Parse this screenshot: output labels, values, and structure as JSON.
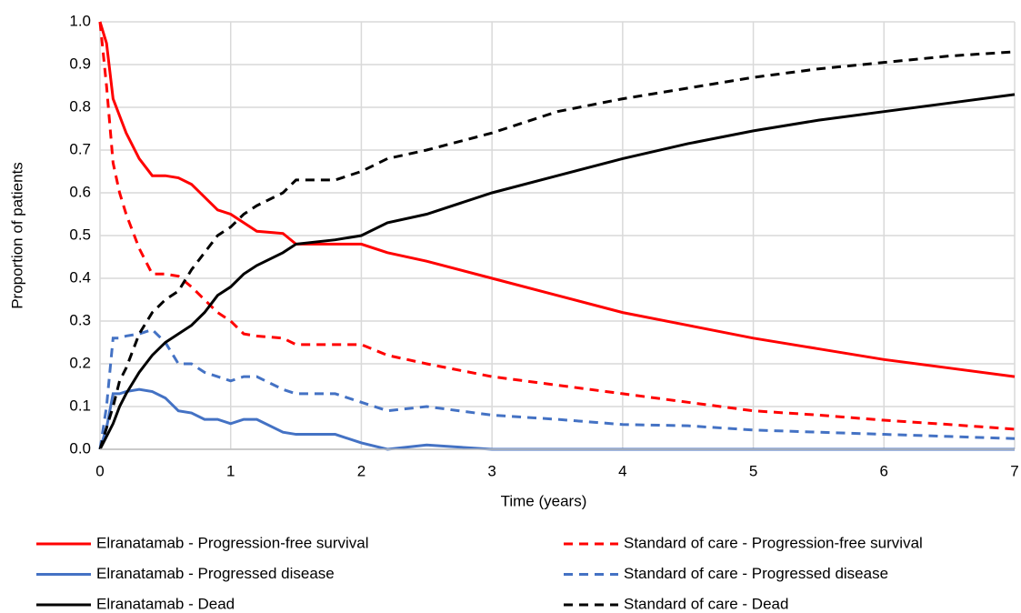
{
  "chart_data": {
    "type": "line",
    "xlabel": "Time (years)",
    "ylabel": "Proportion of patients",
    "x": [
      0,
      0.05,
      0.1,
      0.15,
      0.2,
      0.3,
      0.4,
      0.5,
      0.6,
      0.7,
      0.8,
      0.9,
      1.0,
      1.1,
      1.2,
      1.4,
      1.5,
      1.8,
      2.0,
      2.2,
      2.5,
      3,
      3.5,
      4,
      4.5,
      5,
      5.5,
      6,
      6.5,
      7
    ],
    "series": [
      {
        "name": "Elranatamab - Progression-free survival",
        "color": "#ff0000",
        "dash": false,
        "values": [
          1.0,
          0.95,
          0.82,
          0.78,
          0.74,
          0.68,
          0.64,
          0.64,
          0.635,
          0.62,
          0.59,
          0.56,
          0.55,
          0.53,
          0.51,
          0.505,
          0.48,
          0.48,
          0.48,
          0.46,
          0.44,
          0.4,
          0.36,
          0.32,
          0.29,
          0.26,
          0.235,
          0.21,
          0.19,
          0.17
        ]
      },
      {
        "name": "Standard of care - Progression-free survival",
        "color": "#ff0000",
        "dash": true,
        "values": [
          1.0,
          0.85,
          0.67,
          0.6,
          0.55,
          0.47,
          0.41,
          0.41,
          0.405,
          0.38,
          0.35,
          0.32,
          0.3,
          0.27,
          0.265,
          0.26,
          0.245,
          0.245,
          0.245,
          0.22,
          0.2,
          0.17,
          0.15,
          0.13,
          0.11,
          0.09,
          0.08,
          0.068,
          0.058,
          0.047
        ]
      },
      {
        "name": "Elranatamab - Progressed disease",
        "color": "#4472c4",
        "dash": false,
        "values": [
          0,
          0.05,
          0.13,
          0.13,
          0.135,
          0.14,
          0.135,
          0.12,
          0.09,
          0.085,
          0.07,
          0.07,
          0.06,
          0.07,
          0.07,
          0.04,
          0.035,
          0.035,
          0.015,
          0.0,
          0.01,
          0,
          0,
          0,
          0,
          0,
          0,
          0,
          0,
          0
        ]
      },
      {
        "name": "Standard of care - Progressed disease",
        "color": "#4472c4",
        "dash": true,
        "values": [
          0,
          0.1,
          0.26,
          0.26,
          0.265,
          0.27,
          0.28,
          0.25,
          0.2,
          0.2,
          0.18,
          0.17,
          0.16,
          0.17,
          0.17,
          0.14,
          0.13,
          0.13,
          0.11,
          0.09,
          0.1,
          0.08,
          0.07,
          0.058,
          0.055,
          0.045,
          0.04,
          0.035,
          0.03,
          0.025
        ]
      },
      {
        "name": "Elranatamab - Dead",
        "color": "#000000",
        "dash": false,
        "values": [
          0,
          0.03,
          0.06,
          0.1,
          0.13,
          0.18,
          0.22,
          0.25,
          0.27,
          0.29,
          0.32,
          0.36,
          0.38,
          0.41,
          0.43,
          0.46,
          0.48,
          0.49,
          0.5,
          0.53,
          0.55,
          0.6,
          0.64,
          0.68,
          0.715,
          0.745,
          0.77,
          0.79,
          0.81,
          0.83
        ]
      },
      {
        "name": "Standard of care - Dead",
        "color": "#000000",
        "dash": true,
        "values": [
          0,
          0.05,
          0.1,
          0.16,
          0.19,
          0.27,
          0.32,
          0.35,
          0.37,
          0.42,
          0.46,
          0.5,
          0.52,
          0.55,
          0.57,
          0.6,
          0.63,
          0.63,
          0.65,
          0.68,
          0.7,
          0.74,
          0.79,
          0.82,
          0.845,
          0.87,
          0.89,
          0.905,
          0.92,
          0.93
        ]
      }
    ],
    "xlim": [
      0,
      7
    ],
    "xticks": [
      0,
      1,
      2,
      3,
      4,
      5,
      6,
      7
    ],
    "ylim": [
      0,
      1
    ],
    "yticks": [
      {
        "value": 0,
        "label": "0.0"
      },
      0.1,
      0.2,
      0.3,
      0.4,
      0.5,
      0.6,
      0.7,
      0.8,
      0.9,
      {
        "value": 1,
        "label": "1.0"
      }
    ],
    "grid": true,
    "legend": "bottom"
  }
}
